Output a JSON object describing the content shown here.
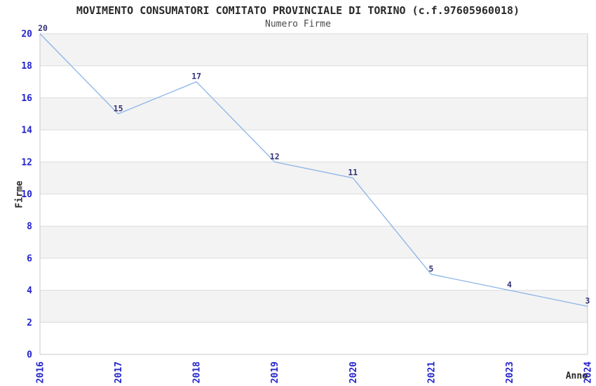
{
  "chart_data": {
    "type": "line",
    "title": "MOVIMENTO CONSUMATORI COMITATO PROVINCIALE DI TORINO (c.f.97605960018)",
    "subtitle": "Numero Firme",
    "xlabel": "Anno",
    "ylabel": "Firme",
    "categories": [
      "2016",
      "2017",
      "2018",
      "2019",
      "2020",
      "2021",
      "2023",
      "2024"
    ],
    "values": [
      20,
      15,
      17,
      12,
      11,
      5,
      4,
      3
    ],
    "ylim": [
      0,
      20
    ],
    "yticks": [
      0,
      2,
      4,
      6,
      8,
      10,
      12,
      14,
      16,
      18,
      20
    ],
    "grid": "horizontal-lines-with-alternating-bands",
    "legend": "none",
    "point_labels_shown": true
  },
  "style": {
    "background": "#ffffff",
    "band_fill": "#f3f3f3",
    "grid_color": "#dcdcdc",
    "axis_color": "#c9c9c9",
    "line_color": "#8ab5e8",
    "tick_label_color": "#2323cc",
    "data_label_color": "#333377",
    "text_color": "#2a2a2a"
  }
}
